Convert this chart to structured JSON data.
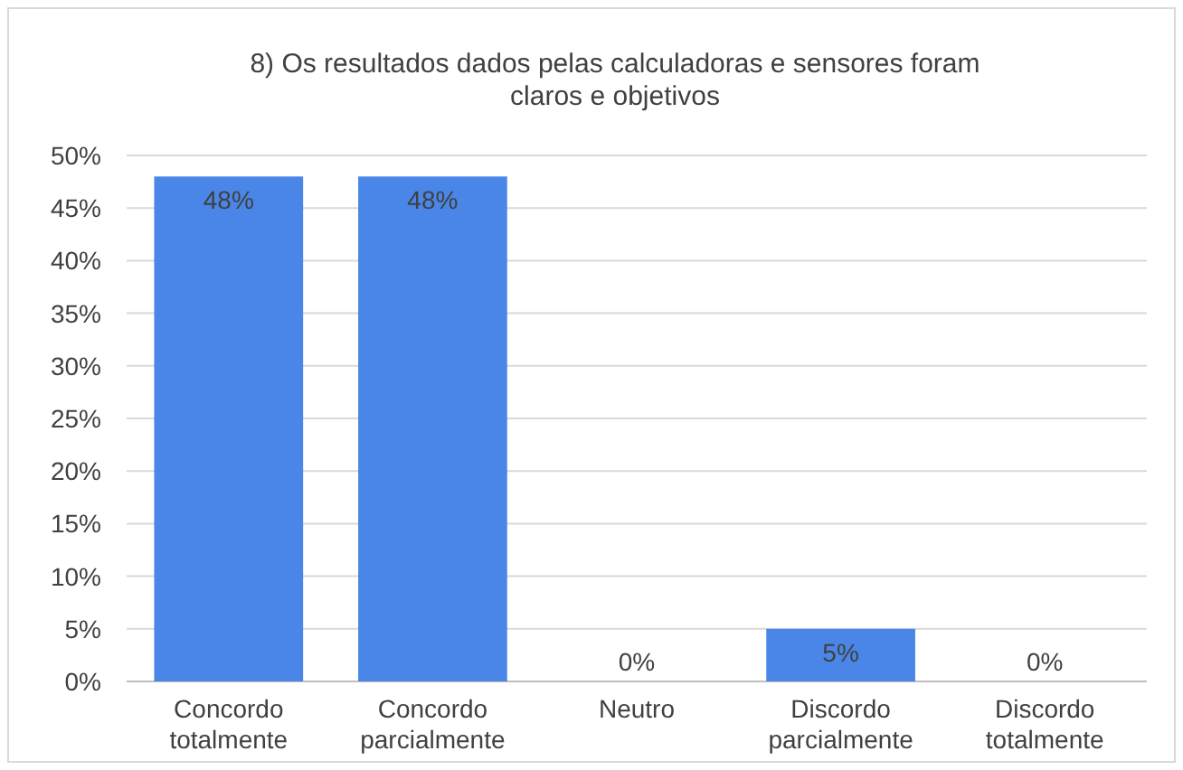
{
  "chart_data": {
    "type": "bar",
    "title": "8) Os resultados dados pelas calculadoras e sensores foram claros e objetivos",
    "categories": [
      "Concordo totalmente",
      "Concordo parcialmente",
      "Neutro",
      "Discordo parcialmente",
      "Discordo totalmente"
    ],
    "values": [
      48,
      48,
      0,
      5,
      0
    ],
    "color": "#4a86e8",
    "value_labels": [
      "48%",
      "48%",
      "0%",
      "5%",
      "0%"
    ],
    "ylim": [
      0,
      50
    ],
    "yticks": [
      {
        "value": 0,
        "label": "0%"
      },
      {
        "value": 5,
        "label": "5%"
      },
      {
        "value": 10,
        "label": "10%"
      },
      {
        "value": 15,
        "label": "15%"
      },
      {
        "value": 20,
        "label": "20%"
      },
      {
        "value": 25,
        "label": "25%"
      },
      {
        "value": 30,
        "label": "30%"
      },
      {
        "value": 35,
        "label": "35%"
      },
      {
        "value": 40,
        "label": "40%"
      },
      {
        "value": 45,
        "label": "45%"
      },
      {
        "value": 50,
        "label": "50%"
      }
    ],
    "grid": true
  }
}
